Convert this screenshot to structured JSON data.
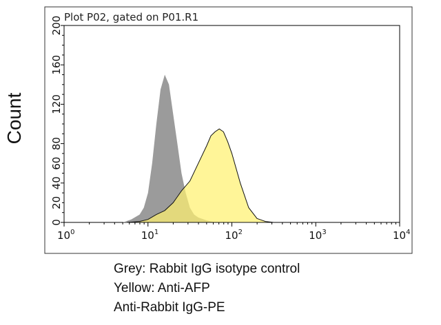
{
  "chart_data": {
    "type": "area",
    "title": "Plot P02, gated on P01.R1",
    "xlabel": "",
    "ylabel": "Count",
    "xscale": "log",
    "xlim_log10": [
      0,
      4
    ],
    "ylim": [
      0,
      200
    ],
    "x_ticks": [
      {
        "base": "10",
        "exp": "0"
      },
      {
        "base": "10",
        "exp": "1"
      },
      {
        "base": "10",
        "exp": "2"
      },
      {
        "base": "10",
        "exp": "3"
      },
      {
        "base": "10",
        "exp": "4"
      }
    ],
    "y_ticks": [
      "0",
      "20",
      "40",
      "60",
      "80",
      "120",
      "160",
      "200"
    ],
    "y_tick_values": [
      0,
      20,
      40,
      60,
      80,
      120,
      160,
      200
    ],
    "series": [
      {
        "name": "Grey: Rabbit IgG isotype control",
        "color": "#9b9b9b",
        "log10_x": [
          0.7,
          0.8,
          0.9,
          0.95,
          1.0,
          1.05,
          1.1,
          1.15,
          1.2,
          1.25,
          1.3,
          1.35,
          1.4,
          1.45,
          1.5,
          1.55,
          1.6,
          1.7,
          1.8
        ],
        "counts": [
          0,
          3,
          8,
          15,
          30,
          60,
          100,
          135,
          150,
          140,
          110,
          80,
          50,
          30,
          15,
          8,
          5,
          2,
          0
        ]
      },
      {
        "name": "Yellow: Anti-AFP",
        "color": "#fff170",
        "log10_x": [
          0.75,
          0.9,
          1.0,
          1.1,
          1.2,
          1.3,
          1.4,
          1.5,
          1.6,
          1.7,
          1.75,
          1.8,
          1.85,
          1.9,
          1.95,
          2.0,
          2.1,
          2.2,
          2.3,
          2.4,
          2.5
        ],
        "counts": [
          0,
          1,
          3,
          8,
          12,
          20,
          32,
          42,
          60,
          78,
          88,
          92,
          95,
          92,
          82,
          70,
          40,
          15,
          4,
          1,
          0
        ]
      }
    ]
  },
  "caption": {
    "line1": "Grey: Rabbit IgG isotype control",
    "line2": "Yellow: Anti-AFP",
    "line3": "Anti-Rabbit IgG-PE"
  }
}
